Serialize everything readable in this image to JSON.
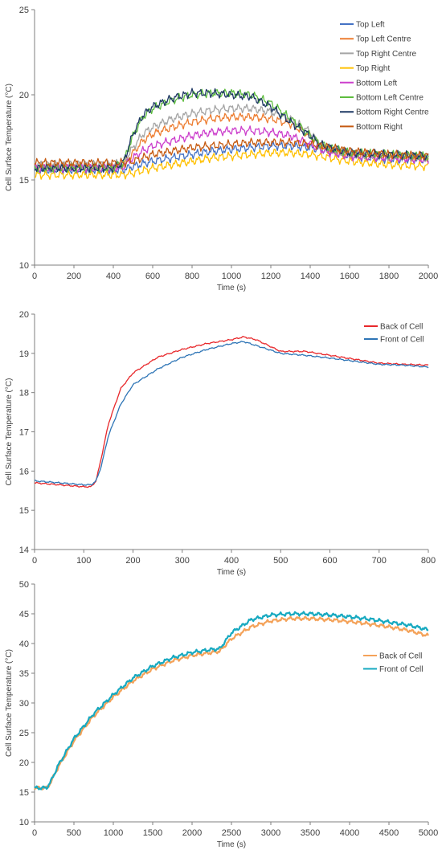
{
  "chart_data": [
    {
      "type": "line",
      "title": "",
      "xlabel": "Time (s)",
      "ylabel": "Cell Surface Temperature (°C)",
      "xlim": [
        0,
        2000
      ],
      "ylim": [
        10,
        25
      ],
      "xticks": [
        0,
        200,
        400,
        600,
        800,
        1000,
        1200,
        1400,
        1600,
        1800,
        2000
      ],
      "yticks": [
        10,
        15,
        20,
        25
      ],
      "grid": false,
      "legend_position": "top-right",
      "series": [
        {
          "name": "Top Left",
          "color": "#4472c4",
          "x": [
            0,
            400,
            450,
            500,
            600,
            700,
            800,
            900,
            1000,
            1100,
            1200,
            1300,
            1400,
            1500,
            1600,
            1800,
            2000
          ],
          "y": [
            15.6,
            15.6,
            15.6,
            15.8,
            16.1,
            16.3,
            16.5,
            16.7,
            16.8,
            16.9,
            17.0,
            17.0,
            16.9,
            16.7,
            16.4,
            16.2,
            16.2
          ]
        },
        {
          "name": "Top Left Centre",
          "color": "#ed7d31",
          "x": [
            0,
            400,
            450,
            500,
            550,
            600,
            700,
            800,
            900,
            1000,
            1100,
            1200,
            1300,
            1400,
            1450,
            1500,
            1600,
            1800,
            2000
          ],
          "y": [
            15.8,
            15.8,
            15.9,
            16.6,
            17.3,
            17.7,
            18.1,
            18.4,
            18.6,
            18.7,
            18.7,
            18.6,
            18.3,
            17.6,
            17.0,
            16.7,
            16.5,
            16.4,
            16.3
          ]
        },
        {
          "name": "Top Right Centre",
          "color": "#a5a5a5",
          "x": [
            0,
            400,
            450,
            500,
            550,
            600,
            700,
            800,
            900,
            1000,
            1100,
            1200,
            1300,
            1400,
            1450,
            1500,
            1600,
            1800,
            2000
          ],
          "y": [
            15.9,
            15.9,
            16.0,
            16.9,
            17.7,
            18.1,
            18.6,
            18.9,
            19.1,
            19.2,
            19.2,
            19.0,
            18.6,
            17.8,
            17.1,
            16.8,
            16.5,
            16.4,
            16.3
          ]
        },
        {
          "name": "Top Right",
          "color": "#ffc000",
          "x": [
            0,
            400,
            450,
            500,
            600,
            700,
            800,
            900,
            1000,
            1100,
            1200,
            1300,
            1400,
            1500,
            1600,
            1800,
            2000
          ],
          "y": [
            15.3,
            15.3,
            15.3,
            15.4,
            15.7,
            15.9,
            16.1,
            16.3,
            16.4,
            16.5,
            16.6,
            16.6,
            16.5,
            16.3,
            16.1,
            15.9,
            15.8
          ]
        },
        {
          "name": "Bottom Left",
          "color": "#cc3fcc",
          "x": [
            0,
            400,
            450,
            500,
            550,
            600,
            700,
            800,
            900,
            1000,
            1100,
            1200,
            1300,
            1400,
            1450,
            1500,
            1600,
            1800,
            2000
          ],
          "y": [
            15.7,
            15.7,
            15.8,
            16.3,
            16.7,
            17.0,
            17.3,
            17.6,
            17.8,
            17.9,
            17.9,
            17.8,
            17.6,
            17.1,
            16.8,
            16.6,
            16.4,
            16.3,
            16.2
          ]
        },
        {
          "name": "Bottom Left Centre",
          "color": "#5ebd3e",
          "x": [
            0,
            400,
            450,
            500,
            550,
            600,
            700,
            800,
            900,
            1000,
            1100,
            1200,
            1300,
            1400,
            1450,
            1500,
            1600,
            1800,
            2000
          ],
          "y": [
            15.7,
            15.7,
            16.0,
            17.6,
            18.7,
            19.2,
            19.7,
            20.0,
            20.1,
            20.1,
            20.0,
            19.5,
            18.6,
            17.6,
            17.1,
            16.9,
            16.6,
            16.5,
            16.4
          ]
        },
        {
          "name": "Bottom Right Centre",
          "color": "#1f3864",
          "x": [
            0,
            400,
            450,
            500,
            550,
            600,
            700,
            800,
            900,
            1000,
            1100,
            1200,
            1300,
            1400,
            1450,
            1500,
            1600,
            1800,
            2000
          ],
          "y": [
            15.7,
            15.7,
            16.0,
            17.7,
            18.8,
            19.3,
            19.8,
            20.1,
            20.1,
            20.0,
            19.9,
            19.3,
            18.4,
            17.6,
            17.1,
            16.9,
            16.6,
            16.5,
            16.4
          ]
        },
        {
          "name": "Bottom Right",
          "color": "#c55a11",
          "x": [
            0,
            400,
            450,
            500,
            600,
            700,
            800,
            900,
            1000,
            1100,
            1200,
            1300,
            1400,
            1500,
            1600,
            1800,
            2000
          ],
          "y": [
            16.0,
            16.0,
            16.0,
            16.1,
            16.5,
            16.7,
            16.9,
            17.0,
            17.1,
            17.2,
            17.2,
            17.2,
            17.1,
            16.9,
            16.7,
            16.5,
            16.4
          ]
        }
      ]
    },
    {
      "type": "line",
      "title": "",
      "xlabel": "Time (s)",
      "ylabel": "Cell Surface Temperature (°C)",
      "xlim": [
        0,
        800
      ],
      "ylim": [
        14,
        20
      ],
      "xticks": [
        0,
        100,
        200,
        300,
        400,
        500,
        600,
        700,
        800
      ],
      "yticks": [
        14,
        15,
        16,
        17,
        18,
        19,
        20
      ],
      "grid": false,
      "legend_position": "top-right",
      "series": [
        {
          "name": "Back of Cell",
          "color": "#e8282b",
          "x": [
            0,
            50,
            100,
            115,
            125,
            135,
            150,
            175,
            200,
            250,
            300,
            350,
            400,
            425,
            450,
            475,
            500,
            550,
            600,
            650,
            700,
            750,
            800
          ],
          "y": [
            15.7,
            15.65,
            15.6,
            15.6,
            15.75,
            16.3,
            17.2,
            18.1,
            18.5,
            18.9,
            19.1,
            19.25,
            19.35,
            19.42,
            19.35,
            19.2,
            19.05,
            19.05,
            18.95,
            18.85,
            18.75,
            18.72,
            18.7
          ]
        },
        {
          "name": "Front of Cell",
          "color": "#2e75b6",
          "x": [
            0,
            50,
            100,
            115,
            125,
            135,
            150,
            175,
            200,
            250,
            300,
            350,
            400,
            425,
            450,
            475,
            500,
            550,
            600,
            650,
            700,
            750,
            800
          ],
          "y": [
            15.75,
            15.7,
            15.65,
            15.65,
            15.75,
            16.1,
            16.9,
            17.7,
            18.2,
            18.6,
            18.9,
            19.1,
            19.25,
            19.3,
            19.2,
            19.1,
            19.0,
            18.95,
            18.88,
            18.8,
            18.72,
            18.7,
            18.65
          ]
        }
      ]
    },
    {
      "type": "line",
      "title": "",
      "xlabel": "Time (s)",
      "ylabel": "Cell Surface Temperature (°C)",
      "xlim": [
        0,
        5000
      ],
      "ylim": [
        10,
        50
      ],
      "xticks": [
        0,
        500,
        1000,
        1500,
        2000,
        2500,
        3000,
        3500,
        4000,
        4500,
        5000
      ],
      "yticks": [
        10,
        15,
        20,
        25,
        30,
        35,
        40,
        45,
        50
      ],
      "grid": false,
      "legend_position": "right",
      "series": [
        {
          "name": "Back of Cell",
          "color": "#f4a259",
          "x": [
            0,
            150,
            200,
            300,
            500,
            750,
            1000,
            1250,
            1500,
            1750,
            2000,
            2250,
            2350,
            2500,
            2750,
            3000,
            3250,
            3500,
            3750,
            4000,
            4250,
            4500,
            4750,
            5000
          ],
          "y": [
            15.7,
            15.7,
            16.5,
            19.2,
            23.6,
            27.8,
            31.0,
            33.7,
            35.7,
            37.1,
            38.0,
            38.5,
            38.7,
            40.8,
            42.8,
            43.8,
            44.2,
            44.2,
            44.0,
            43.7,
            43.3,
            42.8,
            42.2,
            41.3
          ]
        },
        {
          "name": "Front of Cell",
          "color": "#17a9c0",
          "x": [
            0,
            150,
            200,
            300,
            500,
            750,
            1000,
            1250,
            1500,
            1750,
            2000,
            2250,
            2350,
            2500,
            2750,
            3000,
            3250,
            3500,
            3750,
            4000,
            4250,
            4500,
            4750,
            5000
          ],
          "y": [
            15.7,
            15.7,
            16.6,
            19.5,
            24.0,
            28.2,
            31.4,
            34.2,
            36.2,
            37.6,
            38.5,
            39.0,
            39.1,
            41.8,
            44.0,
            44.8,
            45.0,
            45.0,
            44.8,
            44.5,
            44.1,
            43.6,
            43.1,
            42.3
          ]
        }
      ]
    }
  ]
}
